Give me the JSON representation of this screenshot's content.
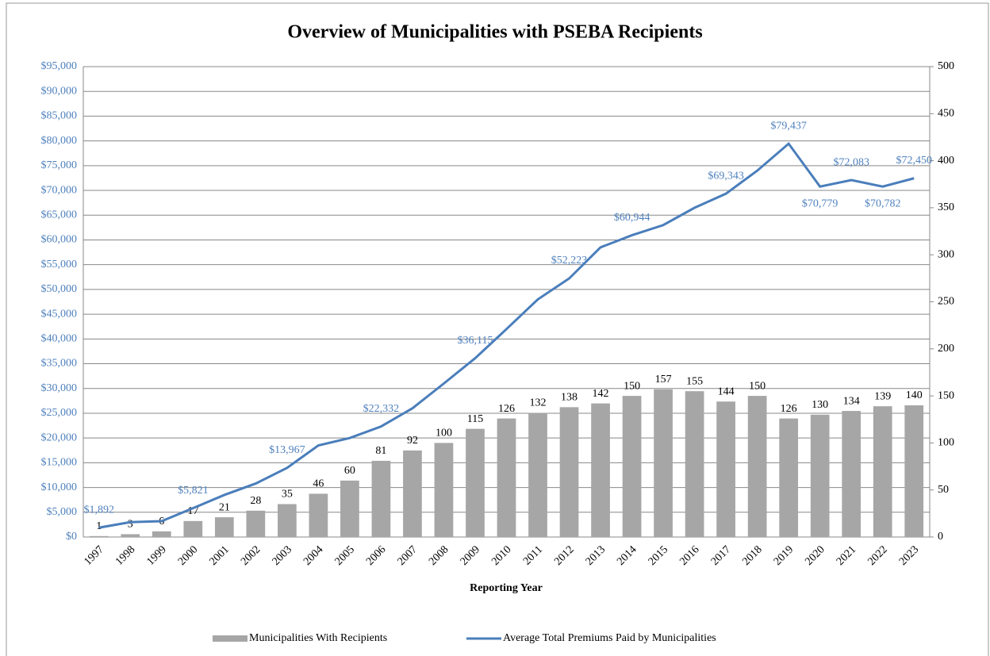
{
  "chart_data": {
    "type": "bar_line",
    "title": "Overview of Municipalities with PSEBA Recipients",
    "x_label": "Reporting Year",
    "categories": [
      "1997",
      "1998",
      "1999",
      "2000",
      "2001",
      "2002",
      "2003",
      "2004",
      "2005",
      "2006",
      "2007",
      "2008",
      "2009",
      "2010",
      "2011",
      "2012",
      "2013",
      "2014",
      "2015",
      "2016",
      "2017",
      "2018",
      "2019",
      "2020",
      "2021",
      "2022",
      "2023"
    ],
    "series": [
      {
        "name": "Municipalities With Recipients",
        "type": "bar",
        "axis": "y2",
        "color": "#a6a6a6",
        "values": [
          1,
          3,
          6,
          17,
          21,
          28,
          35,
          46,
          60,
          81,
          92,
          100,
          115,
          126,
          132,
          138,
          142,
          150,
          157,
          155,
          144,
          150,
          126,
          130,
          134,
          139,
          140
        ]
      },
      {
        "name": "Average Total Premiums Paid by Municipalities",
        "type": "line",
        "axis": "y",
        "color": "#4a7ebb",
        "values": [
          1892,
          3000,
          3200,
          5821,
          8500,
          10800,
          13967,
          18500,
          20000,
          22332,
          26000,
          31000,
          36115,
          42000,
          48000,
          52223,
          58500,
          60944,
          63000,
          66500,
          69343,
          74000,
          79437,
          70779,
          72083,
          70782,
          72450
        ],
        "value_labels": [
          "$1,892",
          null,
          null,
          "$5,821",
          null,
          null,
          "$13,967",
          null,
          null,
          "$22,332",
          null,
          null,
          "$36,115",
          null,
          null,
          "$52,223",
          null,
          "$60,944",
          null,
          null,
          "$69,343",
          null,
          "$79,437",
          "$70,779",
          "$72,083",
          "$70,782",
          "$72,450"
        ]
      }
    ],
    "ylim": [
      0,
      95000
    ],
    "yticks": [
      {
        "value": 0,
        "label": "$0"
      },
      {
        "value": 5000,
        "label": "$5,000"
      },
      {
        "value": 10000,
        "label": "$10,000"
      },
      {
        "value": 15000,
        "label": "$15,000"
      },
      {
        "value": 20000,
        "label": "$20,000"
      },
      {
        "value": 25000,
        "label": "$25,000"
      },
      {
        "value": 30000,
        "label": "$30,000"
      },
      {
        "value": 35000,
        "label": "$35,000"
      },
      {
        "value": 40000,
        "label": "$40,000"
      },
      {
        "value": 45000,
        "label": "$45,000"
      },
      {
        "value": 50000,
        "label": "$50,000"
      },
      {
        "value": 55000,
        "label": "$55,000"
      },
      {
        "value": 60000,
        "label": "$60,000"
      },
      {
        "value": 65000,
        "label": "$65,000"
      },
      {
        "value": 70000,
        "label": "$70,000"
      },
      {
        "value": 75000,
        "label": "$75,000"
      },
      {
        "value": 80000,
        "label": "$80,000"
      },
      {
        "value": 85000,
        "label": "$85,000"
      },
      {
        "value": 90000,
        "label": "$90,000"
      },
      {
        "value": 95000,
        "label": "$95,000"
      }
    ],
    "y2lim": [
      0,
      500
    ],
    "y2ticks": [
      0,
      50,
      100,
      150,
      200,
      250,
      300,
      350,
      400,
      450,
      500
    ],
    "grid": true
  }
}
